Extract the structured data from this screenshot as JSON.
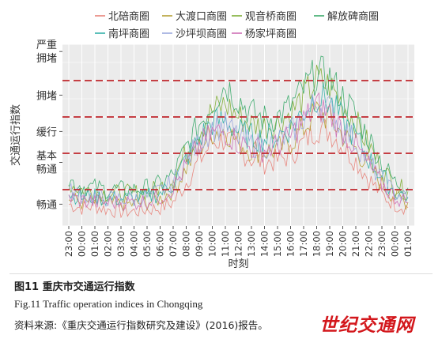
{
  "chart_data": {
    "type": "line",
    "title": "",
    "xlabel": "时刻",
    "ylabel": "交通运行指数",
    "x_ticks": [
      "23:00",
      "00:00",
      "01:00",
      "02:00",
      "03:00",
      "04:00",
      "05:00",
      "06:00",
      "07:00",
      "08:00",
      "09:00",
      "10:00",
      "11:00",
      "12:00",
      "13:00",
      "14:00",
      "15:00",
      "16:00",
      "17:00",
      "18:00",
      "19:00",
      "20:00",
      "21:00",
      "22:00",
      "23:00",
      "00:00",
      "01:00"
    ],
    "y_range": [
      0,
      10
    ],
    "y_ticks": [
      {
        "label1": "严重",
        "label2": "拥堵",
        "value": 9.6
      },
      {
        "label1": "拥堵",
        "label2": "",
        "value": 7.2
      },
      {
        "label1": "缓行",
        "label2": "",
        "value": 5.2
      },
      {
        "label1": "基本",
        "label2": "畅通",
        "value": 3.5
      },
      {
        "label1": "畅通",
        "label2": "",
        "value": 1.2
      }
    ],
    "thresholds": [
      2,
      4,
      6,
      8
    ],
    "threshold_color": "#c0272d",
    "grid": true,
    "legend_position": "top",
    "series": [
      {
        "name": "北碚商圈",
        "color": "#e8837a",
        "values": [
          1.2,
          1.0,
          1.1,
          0.9,
          0.8,
          0.8,
          0.9,
          1.0,
          1.3,
          2.4,
          3.6,
          4.6,
          4.8,
          4.2,
          3.7,
          3.5,
          3.6,
          3.9,
          4.6,
          5.4,
          5.2,
          4.4,
          3.6,
          2.6,
          1.7,
          1.2,
          1.0
        ]
      },
      {
        "name": "大渡口商圈",
        "color": "#b5a035",
        "values": [
          1.5,
          1.3,
          1.3,
          1.2,
          1.2,
          1.2,
          1.3,
          1.5,
          2.0,
          3.2,
          4.3,
          5.2,
          5.3,
          4.6,
          4.2,
          4.1,
          4.2,
          4.6,
          5.4,
          6.3,
          5.9,
          5.0,
          4.2,
          3.3,
          2.3,
          1.6,
          1.3
        ]
      },
      {
        "name": "观音桥商圈",
        "color": "#7fae35",
        "values": [
          2.3,
          2.0,
          1.9,
          1.8,
          1.8,
          1.8,
          1.9,
          2.1,
          2.6,
          4.1,
          5.3,
          6.3,
          6.7,
          6.0,
          5.6,
          5.5,
          5.7,
          6.2,
          7.1,
          8.0,
          7.7,
          6.7,
          5.7,
          4.4,
          3.2,
          2.2,
          1.9
        ]
      },
      {
        "name": "解放碑商圈",
        "color": "#3aaa6a",
        "values": [
          2.5,
          2.2,
          2.1,
          2.0,
          2.0,
          2.0,
          2.1,
          2.3,
          2.8,
          4.3,
          5.6,
          6.8,
          7.8,
          7.0,
          6.2,
          5.9,
          6.0,
          6.6,
          7.5,
          8.4,
          8.1,
          7.1,
          6.1,
          4.8,
          3.5,
          2.4,
          2.1
        ]
      },
      {
        "name": "南坪商圈",
        "color": "#33b0a8",
        "values": [
          1.8,
          1.6,
          1.6,
          1.5,
          1.5,
          1.5,
          1.6,
          1.8,
          2.3,
          3.7,
          4.8,
          5.7,
          5.8,
          5.2,
          4.9,
          4.8,
          5.0,
          5.4,
          6.3,
          7.2,
          6.8,
          5.8,
          4.9,
          3.7,
          2.7,
          1.9,
          1.6
        ]
      },
      {
        "name": "沙坪坝商圈",
        "color": "#9ba8de",
        "values": [
          1.9,
          1.7,
          1.6,
          1.5,
          1.5,
          1.5,
          1.6,
          1.9,
          2.4,
          3.6,
          4.6,
          5.4,
          5.5,
          4.9,
          4.5,
          4.4,
          4.6,
          5.1,
          6.0,
          6.8,
          6.4,
          5.4,
          4.6,
          3.5,
          2.5,
          1.8,
          1.5
        ]
      },
      {
        "name": "杨家坪商圈",
        "color": "#cf6fb6",
        "values": [
          1.6,
          1.4,
          1.3,
          1.3,
          1.3,
          1.3,
          1.4,
          1.6,
          2.1,
          3.3,
          4.4,
          5.1,
          5.2,
          4.6,
          4.3,
          4.2,
          4.4,
          4.9,
          5.8,
          6.6,
          6.2,
          5.2,
          4.4,
          3.3,
          2.3,
          1.6,
          1.3
        ]
      }
    ]
  },
  "caption": {
    "cn": "图11  重庆市交通运行指数",
    "en": "Fig.11  Traffic operation indices in Chongqing",
    "source": "资料来源:《重庆交通运行指数研究及建设》(2016)报告。"
  },
  "watermark": "世纪交通网"
}
